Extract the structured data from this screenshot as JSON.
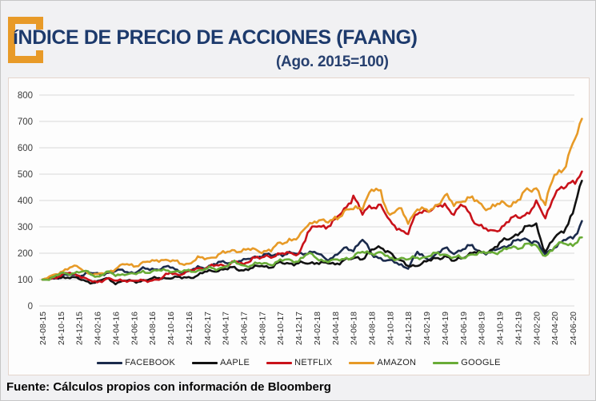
{
  "header": {
    "title": "íNDICE DE PRECIO DE ACCIONES (FAANG)",
    "subtitle": "(Ago. 2015=100)"
  },
  "footer": {
    "source": "Fuente: Cálculos propios con información de Bloomberg"
  },
  "colors": {
    "title_navy": "#1d3a6c",
    "logo_orange": "#e89a28",
    "gridline": "#d9d9d9",
    "axis_text": "#3d3d3d"
  },
  "chart_data": {
    "type": "line",
    "title": "íNDICE DE PRECIO DE ACCIONES (FAANG)",
    "subtitle": "(Ago. 2015=100)",
    "ylim": [
      0,
      800
    ],
    "yticks": [
      0,
      100,
      200,
      300,
      400,
      500,
      600,
      700,
      800
    ],
    "grid": true,
    "legend_position": "bottom",
    "x_start_month": "2015-08",
    "x_end_month": "2020-07",
    "x_tick_labels": [
      "24-08-15",
      "24-10-15",
      "24-12-15",
      "24-02-16",
      "24-04-16",
      "24-06-16",
      "24-08-16",
      "24-10-16",
      "24-12-16",
      "24-02-17",
      "24-04-17",
      "24-06-17",
      "24-08-17",
      "24-10-17",
      "24-12-17",
      "24-02-18",
      "24-04-18",
      "24-06-18",
      "24-08-18",
      "24-10-18",
      "24-12-18",
      "24-02-19",
      "24-04-19",
      "24-06-19",
      "24-08-19",
      "24-10-19",
      "24-12-19",
      "24-02-20",
      "24-04-20",
      "24-06-20"
    ],
    "series": [
      {
        "name": "FACEBOOK",
        "color": "#1b2b4c",
        "values": [
          100,
          105,
          113,
          116,
          117,
          125,
          119,
          127,
          131,
          133,
          127,
          138,
          141,
          143,
          146,
          133,
          128,
          145,
          151,
          158,
          167,
          169,
          168,
          188,
          191,
          190,
          200,
          197,
          196,
          207,
          198,
          178,
          191,
          213,
          216,
          255,
          193,
          183,
          169,
          158,
          148,
          200,
          179,
          195,
          215,
          205,
          214,
          226,
          207,
          198,
          220,
          235,
          245,
          255,
          245,
          190,
          228,
          248,
          253,
          322
        ]
      },
      {
        "name": "AAPLE",
        "color": "#121212",
        "values": [
          100,
          105,
          108,
          112,
          100,
          92,
          91,
          103,
          89,
          95,
          91,
          99,
          101,
          107,
          108,
          105,
          110,
          115,
          130,
          137,
          137,
          145,
          137,
          141,
          156,
          147,
          161,
          164,
          161,
          159,
          169,
          160,
          157,
          178,
          176,
          181,
          216,
          215,
          208,
          172,
          150,
          158,
          165,
          181,
          191,
          166,
          188,
          203,
          198,
          214,
          236,
          254,
          279,
          295,
          310,
          205,
          255,
          290,
          350,
          475
        ]
      },
      {
        "name": "NETFLIX",
        "color": "#c9121a",
        "values": [
          100,
          107,
          112,
          127,
          118,
          95,
          91,
          105,
          93,
          100,
          94,
          94,
          100,
          101,
          128,
          120,
          127,
          145,
          146,
          152,
          157,
          167,
          154,
          187,
          180,
          187,
          203,
          194,
          198,
          278,
          300,
          305,
          322,
          361,
          425,
          344,
          380,
          386,
          311,
          296,
          276,
          350,
          368,
          368,
          382,
          357,
          379,
          333,
          303,
          276,
          296,
          324,
          334,
          355,
          385,
          335,
          433,
          440,
          475,
          510
        ]
      },
      {
        "name": "AMAZON",
        "color": "#e79a27",
        "values": [
          100,
          110,
          132,
          145,
          146,
          128,
          115,
          128,
          143,
          156,
          154,
          164,
          166,
          180,
          170,
          162,
          162,
          178,
          182,
          191,
          200,
          214,
          209,
          213,
          211,
          208,
          239,
          253,
          252,
          313,
          326,
          312,
          338,
          352,
          367,
          383,
          435,
          432,
          345,
          365,
          324,
          370,
          354,
          384,
          415,
          383,
          409,
          403,
          383,
          374,
          383,
          389,
          399,
          434,
          455,
          380,
          500,
          527,
          600,
          710
        ]
      },
      {
        "name": "GOOGLE",
        "color": "#69ac37",
        "values": [
          100,
          106,
          120,
          125,
          129,
          126,
          112,
          126,
          117,
          124,
          117,
          131,
          131,
          133,
          136,
          129,
          131,
          136,
          140,
          140,
          153,
          163,
          154,
          157,
          159,
          161,
          171,
          172,
          174,
          196,
          183,
          171,
          169,
          182,
          186,
          203,
          204,
          199,
          180,
          184,
          173,
          186,
          187,
          195,
          199,
          184,
          179,
          202,
          197,
          202,
          209,
          216,
          222,
          238,
          222,
          193,
          223,
          238,
          235,
          260
        ]
      }
    ]
  }
}
